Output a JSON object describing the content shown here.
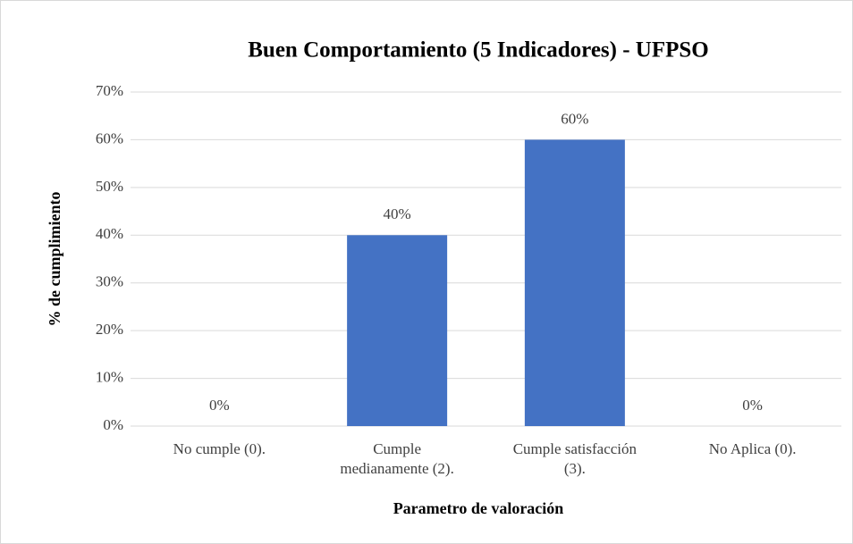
{
  "chart_data": {
    "type": "bar",
    "title": "Buen Comportamiento  (5 Indicadores) - UFPSO",
    "x_label": "Parametro  de valoración",
    "y_label": "% de cumplimiento",
    "categories": [
      "No cumple (0).",
      "Cumple medianamente (2).",
      "Cumple satisfacción (3).",
      "No Aplica (0)."
    ],
    "values": [
      0,
      40,
      60,
      0
    ],
    "value_labels": [
      "0%",
      "40%",
      "60%",
      "0%"
    ],
    "color": "#4472c4",
    "ylim": [
      0,
      70
    ],
    "yticks": [
      {
        "value": 0,
        "label": "0%"
      },
      {
        "value": 10,
        "label": "10%"
      },
      {
        "value": 20,
        "label": "20%"
      },
      {
        "value": 30,
        "label": "30%"
      },
      {
        "value": 40,
        "label": "40%"
      },
      {
        "value": 50,
        "label": "50%"
      },
      {
        "value": 60,
        "label": "60%"
      },
      {
        "value": 70,
        "label": "70%"
      }
    ],
    "grid": true
  }
}
